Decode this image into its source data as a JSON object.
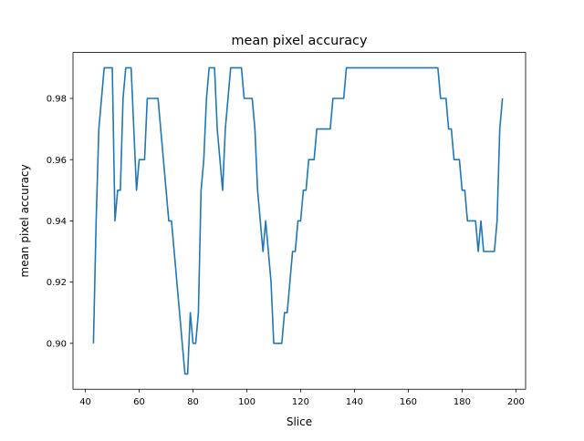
{
  "figure": {
    "title": "mean pixel accuracy"
  },
  "chart_data": {
    "type": "line",
    "title": "mean pixel accuracy",
    "xlabel": "Slice",
    "ylabel": "mean pixel accuracy",
    "xlim": [
      35.4,
      203.6
    ],
    "ylim": [
      0.885,
      0.995
    ],
    "xticks": [
      40,
      60,
      80,
      100,
      120,
      140,
      160,
      180,
      200
    ],
    "xtick_labels": [
      "40",
      "60",
      "80",
      "100",
      "120",
      "140",
      "160",
      "180",
      "200"
    ],
    "yticks": [
      0.9,
      0.92,
      0.94,
      0.96,
      0.98
    ],
    "ytick_labels": [
      "0.90",
      "0.92",
      "0.94",
      "0.96",
      "0.98"
    ],
    "grid": false,
    "legend": "none",
    "series": [
      {
        "color": "#1f77b4",
        "x": [
          43,
          44,
          45,
          46,
          47,
          48,
          49,
          50,
          51,
          52,
          53,
          54,
          55,
          56,
          57,
          58,
          59,
          60,
          61,
          62,
          63,
          64,
          65,
          66,
          67,
          68,
          69,
          70,
          71,
          72,
          73,
          74,
          75,
          76,
          77,
          78,
          79,
          80,
          81,
          82,
          83,
          84,
          85,
          86,
          87,
          88,
          89,
          90,
          91,
          92,
          93,
          94,
          95,
          96,
          97,
          98,
          99,
          100,
          101,
          102,
          103,
          104,
          105,
          106,
          107,
          108,
          109,
          110,
          111,
          112,
          113,
          114,
          115,
          116,
          117,
          118,
          119,
          120,
          121,
          122,
          123,
          124,
          125,
          126,
          127,
          128,
          129,
          130,
          131,
          132,
          133,
          134,
          135,
          136,
          137,
          138,
          139,
          140,
          141,
          142,
          143,
          144,
          145,
          146,
          147,
          148,
          149,
          150,
          151,
          152,
          153,
          154,
          155,
          156,
          157,
          158,
          159,
          160,
          161,
          162,
          163,
          164,
          165,
          166,
          167,
          168,
          169,
          170,
          171,
          172,
          173,
          174,
          175,
          176,
          177,
          178,
          179,
          180,
          181,
          182,
          183,
          184,
          185,
          186,
          187,
          188,
          189,
          190,
          191,
          192,
          193,
          194,
          195
        ],
        "y": [
          0.9,
          0.94,
          0.97,
          0.98,
          0.99,
          0.99,
          0.99,
          0.99,
          0.94,
          0.95,
          0.95,
          0.98,
          0.99,
          0.99,
          0.99,
          0.97,
          0.95,
          0.96,
          0.96,
          0.96,
          0.98,
          0.98,
          0.98,
          0.98,
          0.98,
          0.97,
          0.96,
          0.95,
          0.94,
          0.94,
          0.93,
          0.92,
          0.91,
          0.9,
          0.89,
          0.89,
          0.91,
          0.9,
          0.9,
          0.91,
          0.95,
          0.96,
          0.98,
          0.99,
          0.99,
          0.99,
          0.97,
          0.96,
          0.95,
          0.97,
          0.98,
          0.99,
          0.99,
          0.99,
          0.99,
          0.99,
          0.98,
          0.98,
          0.98,
          0.98,
          0.97,
          0.95,
          0.94,
          0.93,
          0.94,
          0.93,
          0.92,
          0.9,
          0.9,
          0.9,
          0.9,
          0.91,
          0.91,
          0.92,
          0.93,
          0.93,
          0.94,
          0.94,
          0.95,
          0.95,
          0.96,
          0.96,
          0.96,
          0.97,
          0.97,
          0.97,
          0.97,
          0.97,
          0.97,
          0.98,
          0.98,
          0.98,
          0.98,
          0.98,
          0.99,
          0.99,
          0.99,
          0.99,
          0.99,
          0.99,
          0.99,
          0.99,
          0.99,
          0.99,
          0.99,
          0.99,
          0.99,
          0.99,
          0.99,
          0.99,
          0.99,
          0.99,
          0.99,
          0.99,
          0.99,
          0.99,
          0.99,
          0.99,
          0.99,
          0.99,
          0.99,
          0.99,
          0.99,
          0.99,
          0.99,
          0.99,
          0.99,
          0.99,
          0.99,
          0.98,
          0.98,
          0.98,
          0.97,
          0.97,
          0.96,
          0.96,
          0.96,
          0.95,
          0.95,
          0.94,
          0.94,
          0.94,
          0.94,
          0.93,
          0.94,
          0.93,
          0.93,
          0.93,
          0.93,
          0.93,
          0.94,
          0.97,
          0.98
        ]
      }
    ]
  }
}
